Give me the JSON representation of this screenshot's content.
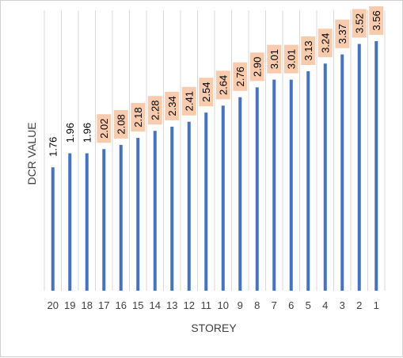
{
  "chart_data": {
    "type": "bar",
    "categories": [
      "20",
      "19",
      "18",
      "17",
      "16",
      "15",
      "14",
      "13",
      "12",
      "11",
      "10",
      "9",
      "8",
      "7",
      "6",
      "5",
      "4",
      "3",
      "2",
      "1"
    ],
    "values": [
      1.76,
      1.96,
      1.96,
      2.02,
      2.08,
      2.18,
      2.28,
      2.34,
      2.41,
      2.54,
      2.64,
      2.76,
      2.9,
      3.01,
      3.01,
      3.13,
      3.24,
      3.37,
      3.52,
      3.56
    ],
    "value_labels": [
      "1.76",
      "1.96",
      "1.96",
      "2.02",
      "2.08",
      "2.18",
      "2.28",
      "2.34",
      "2.41",
      "2.54",
      "2.64",
      "2.76",
      "2.90",
      "3.01",
      "3.01",
      "3.13",
      "3.24",
      "3.37",
      "3.52",
      "3.56"
    ],
    "xlabel": "STOREY",
    "ylabel": "DCR VALUE",
    "ylim": [
      0,
      4.0
    ],
    "grid": "vertical",
    "legend": "none",
    "highlight_from_index": 3,
    "colors": {
      "bar": "#4472c4",
      "grid": "#d9d9d9",
      "label_box": "#f8cbad",
      "text": "#404040"
    }
  }
}
